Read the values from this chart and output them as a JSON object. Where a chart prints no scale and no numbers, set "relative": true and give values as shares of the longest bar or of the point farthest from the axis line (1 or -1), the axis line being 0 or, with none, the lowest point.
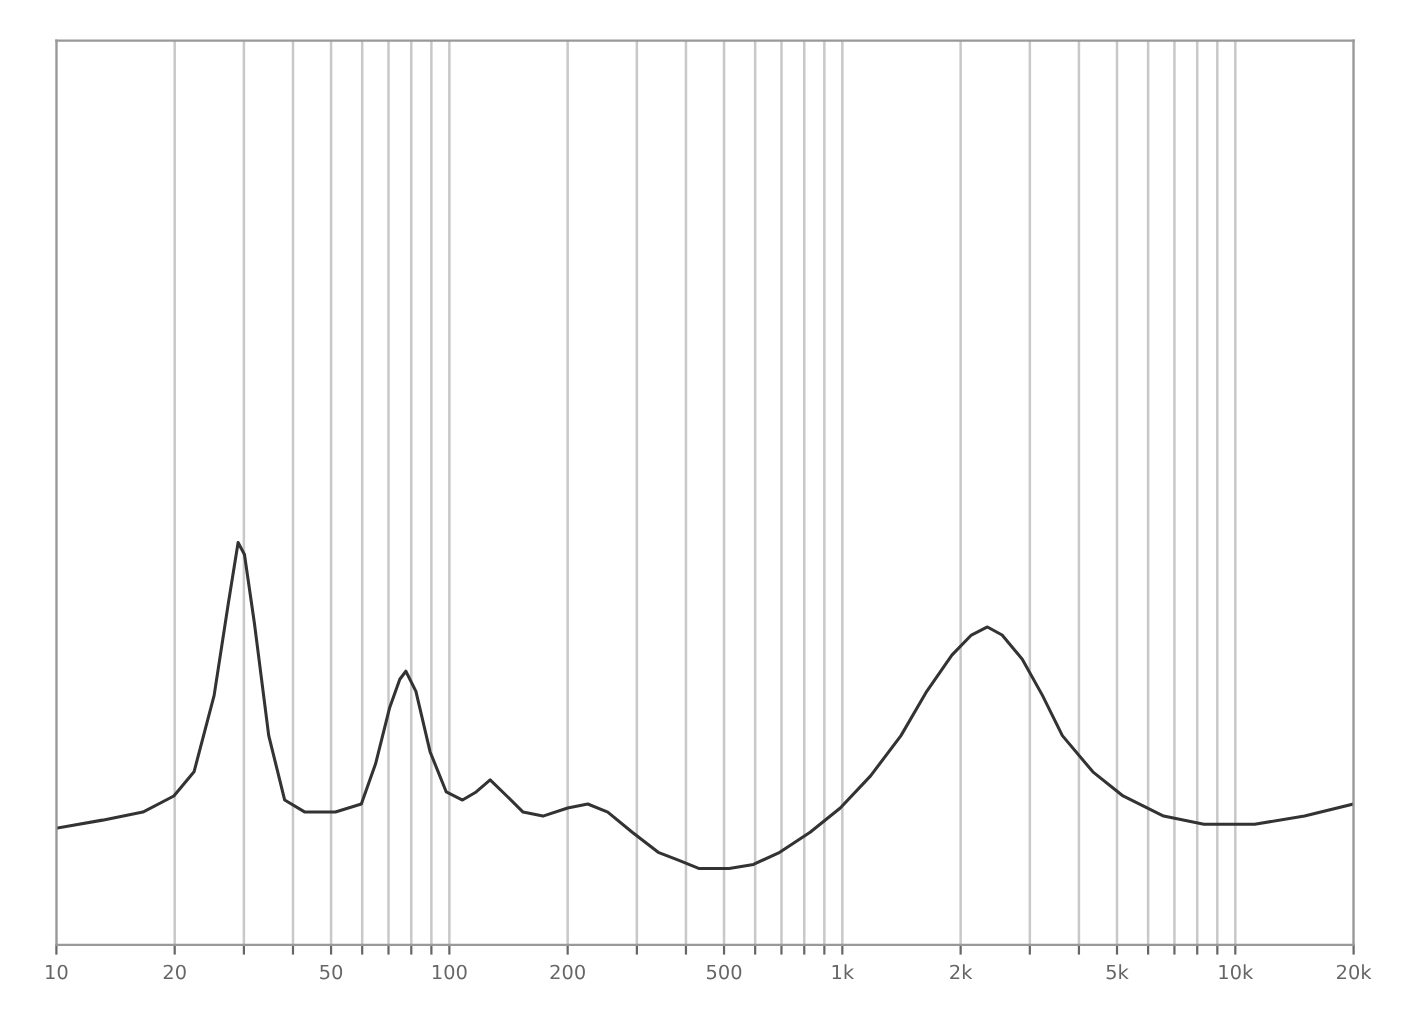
{
  "chart_data": {
    "type": "line",
    "relative": true,
    "log": "x",
    "grid": "x",
    "xlim": [
      10,
      20000
    ],
    "xticks": [
      10,
      20,
      {
        "value": 30,
        "label": null
      },
      {
        "value": 40,
        "label": null
      },
      50,
      {
        "value": 60,
        "label": null
      },
      {
        "value": 70,
        "label": null
      },
      {
        "value": 80,
        "label": null
      },
      {
        "value": 90,
        "label": null
      },
      100,
      200,
      {
        "value": 300,
        "label": null
      },
      {
        "value": 400,
        "label": null
      },
      500,
      {
        "value": 600,
        "label": null
      },
      {
        "value": 700,
        "label": null
      },
      {
        "value": 800,
        "label": null
      },
      {
        "value": 900,
        "label": null
      },
      {
        "value": 1000,
        "label": "1k"
      },
      {
        "value": 2000,
        "label": "2k"
      },
      {
        "value": 3000,
        "label": null
      },
      {
        "value": 4000,
        "label": null
      },
      {
        "value": 5000,
        "label": "5k"
      },
      {
        "value": 6000,
        "label": null
      },
      {
        "value": 7000,
        "label": null
      },
      {
        "value": 8000,
        "label": null
      },
      {
        "value": 9000,
        "label": null
      },
      {
        "value": 10000,
        "label": "10k"
      },
      {
        "value": 20000,
        "label": "20k"
      }
    ],
    "tick_labels": "x",
    "series": [
      {
        "color": "#333333",
        "x": [
          10,
          13.1,
          16.6,
          19.9,
          22.4,
          25.2,
          27.4,
          29,
          30.1,
          31.9,
          34.7,
          38.1,
          42.9,
          51.3,
          59.7,
          64.9,
          70.5,
          74.8,
          77.5,
          82.2,
          89.3,
          98.2,
          108,
          117,
          127,
          140,
          154,
          173,
          200,
          225,
          253,
          292,
          340,
          384,
          431,
          515,
          594,
          693,
          828,
          988,
          1180,
          1410,
          1640,
          1900,
          2130,
          2340,
          2550,
          2870,
          3230,
          3630,
          4340,
          5180,
          6570,
          8320,
          11200,
          15000,
          20000
        ],
        "values": [
          0.29,
          0.31,
          0.33,
          0.37,
          0.43,
          0.62,
          0.85,
          1.0,
          0.97,
          0.8,
          0.52,
          0.36,
          0.33,
          0.33,
          0.35,
          0.45,
          0.59,
          0.66,
          0.68,
          0.63,
          0.48,
          0.38,
          0.36,
          0.38,
          0.41,
          0.37,
          0.33,
          0.32,
          0.34,
          0.35,
          0.33,
          0.28,
          0.23,
          0.21,
          0.19,
          0.19,
          0.2,
          0.23,
          0.28,
          0.34,
          0.42,
          0.52,
          0.63,
          0.72,
          0.77,
          0.79,
          0.77,
          0.71,
          0.62,
          0.52,
          0.43,
          0.37,
          0.32,
          0.3,
          0.3,
          0.32,
          0.35
        ]
      }
    ]
  }
}
